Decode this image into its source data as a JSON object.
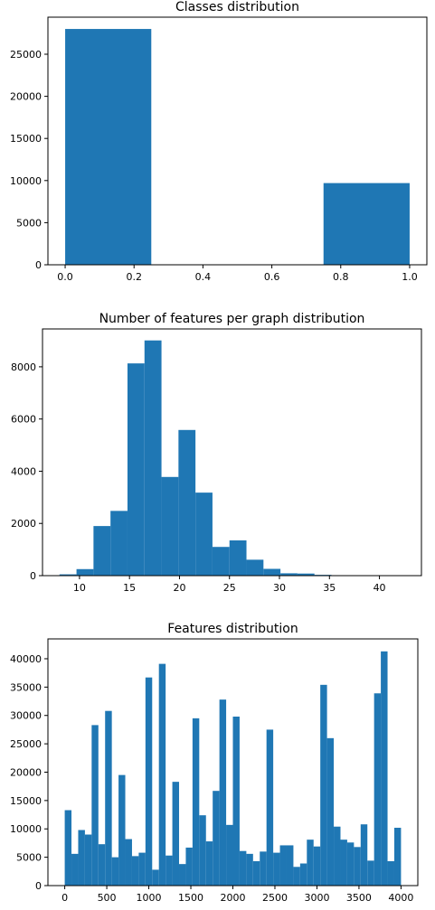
{
  "chart_data": [
    {
      "type": "bar",
      "title": "Classes distribution",
      "xlabel": "",
      "ylabel": "",
      "xlim": [
        -0.05,
        1.05
      ],
      "ylim": [
        0,
        29400
      ],
      "xticks": [
        0.0,
        0.2,
        0.4,
        0.6,
        0.8,
        1.0
      ],
      "xtick_labels": [
        "0.0",
        "0.2",
        "0.4",
        "0.6",
        "0.8",
        "1.0"
      ],
      "yticks": [
        0,
        5000,
        10000,
        15000,
        20000,
        25000
      ],
      "ytick_labels": [
        "0",
        "5000",
        "10000",
        "15000",
        "20000",
        "25000"
      ],
      "bins": [
        [
          0.0,
          0.25
        ],
        [
          0.75,
          1.0
        ]
      ],
      "values": [
        28000,
        9700
      ],
      "bar_color": "#1f77b4",
      "grid": false
    },
    {
      "type": "bar",
      "title": "Number of features per graph distribution",
      "xlabel": "",
      "ylabel": "",
      "xlim": [
        6.3,
        44.2
      ],
      "ylim": [
        0,
        9450
      ],
      "xticks": [
        10,
        15,
        20,
        25,
        30,
        35,
        40
      ],
      "xtick_labels": [
        "10",
        "15",
        "20",
        "25",
        "30",
        "35",
        "40"
      ],
      "yticks": [
        0,
        2000,
        4000,
        6000,
        8000
      ],
      "ytick_labels": [
        "0",
        "2000",
        "4000",
        "6000",
        "8000"
      ],
      "bin_edges": [
        8.0,
        9.7,
        11.4,
        13.1,
        14.8,
        16.5,
        18.2,
        19.9,
        21.6,
        23.3,
        25.0,
        26.7,
        28.4,
        30.1,
        31.8,
        33.5,
        35.2,
        36.9,
        38.6,
        40.3,
        42.0
      ],
      "values": [
        50,
        250,
        1900,
        2480,
        8130,
        9010,
        3780,
        5580,
        3180,
        1100,
        1350,
        610,
        260,
        90,
        80,
        30,
        10,
        5,
        3,
        2
      ],
      "bar_color": "#1f77b4",
      "grid": false
    },
    {
      "type": "bar",
      "title": "Features distribution",
      "xlabel": "",
      "ylabel": "",
      "xlim": [
        -200,
        4200
      ],
      "ylim": [
        0,
        43500
      ],
      "xticks": [
        0,
        500,
        1000,
        1500,
        2000,
        2500,
        3000,
        3500,
        4000
      ],
      "xtick_labels": [
        "0",
        "500",
        "1000",
        "1500",
        "2000",
        "2500",
        "3000",
        "3500",
        "4000"
      ],
      "yticks": [
        0,
        5000,
        10000,
        15000,
        20000,
        25000,
        30000,
        35000,
        40000
      ],
      "ytick_labels": [
        "0",
        "5000",
        "10000",
        "15000",
        "20000",
        "25000",
        "30000",
        "35000",
        "40000"
      ],
      "bin_range": [
        0,
        4000
      ],
      "values": [
        13300,
        5600,
        9800,
        9000,
        28300,
        7300,
        30800,
        5000,
        19500,
        8200,
        5200,
        5800,
        36700,
        2800,
        39100,
        5300,
        18300,
        3800,
        6700,
        29500,
        12400,
        7800,
        16700,
        32800,
        10700,
        29800,
        6100,
        5600,
        4300,
        6000,
        27500,
        5800,
        7100,
        7100,
        3300,
        3900,
        8100,
        6900,
        35400,
        26000,
        10400,
        8100,
        7600,
        6800,
        10800,
        4400,
        33900,
        41300,
        4300,
        10200
      ],
      "bar_color": "#1f77b4",
      "grid": false
    }
  ]
}
